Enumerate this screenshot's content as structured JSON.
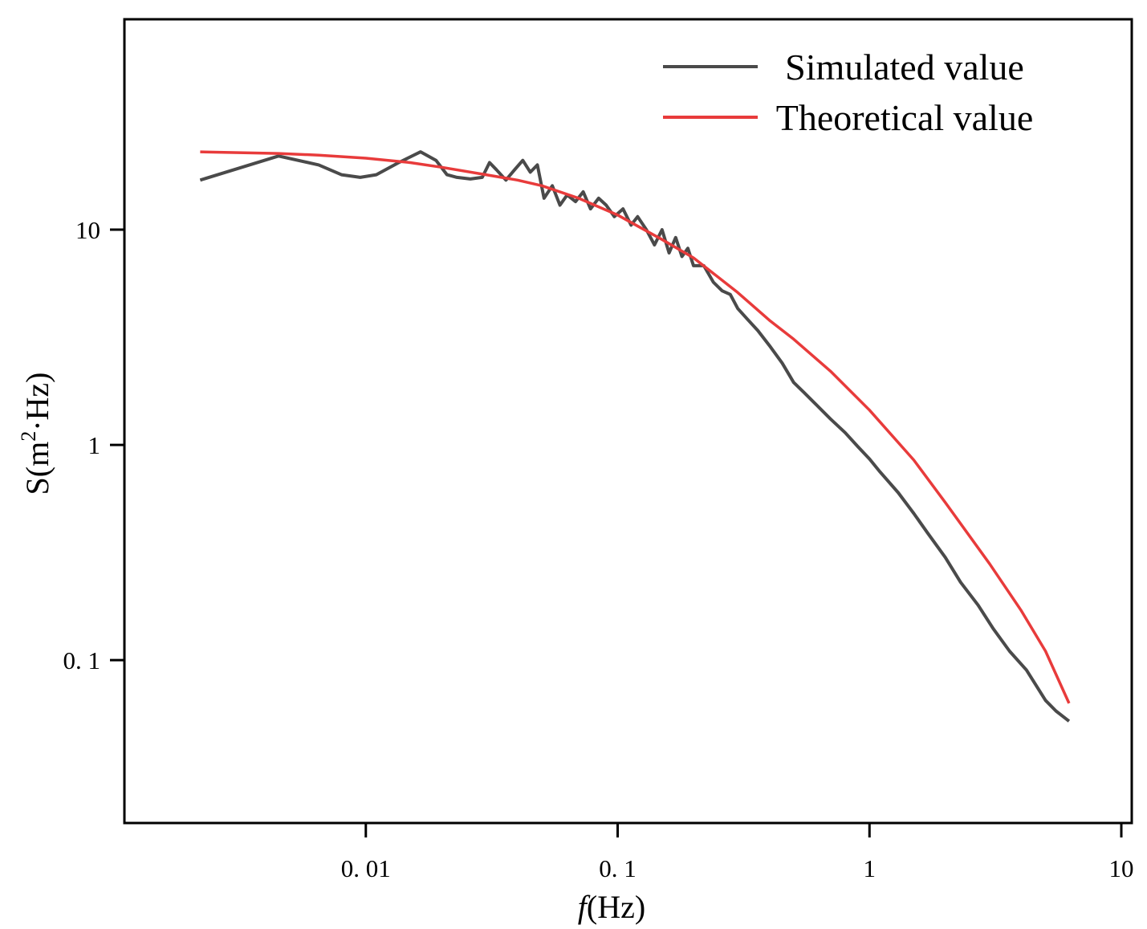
{
  "chart_data": {
    "type": "line",
    "title": "",
    "xlabel_italic": "f",
    "xlabel_rest": "(Hz)",
    "ylabel_main": "S(m",
    "ylabel_sup": "2",
    "ylabel_end": "·Hz)",
    "xscale": "log",
    "yscale": "log",
    "xlim": [
      0.0011,
      11
    ],
    "ylim": [
      0.0175,
      95
    ],
    "grid": false,
    "legend_position": "top-right",
    "x_ticks": [
      {
        "value": 0.01,
        "label": "0. 01"
      },
      {
        "value": 0.1,
        "label": "0. 1"
      },
      {
        "value": 1,
        "label": "1"
      },
      {
        "value": 10,
        "label": "10"
      }
    ],
    "y_ticks": [
      {
        "value": 0.1,
        "label": "0. 1"
      },
      {
        "value": 1,
        "label": "1"
      },
      {
        "value": 10,
        "label": "10"
      }
    ],
    "series": [
      {
        "name": "Simulated value",
        "color": "#4a4a4a",
        "x": [
          0.0022,
          0.0045,
          0.0065,
          0.008,
          0.0095,
          0.011,
          0.0135,
          0.0165,
          0.019,
          0.021,
          0.023,
          0.026,
          0.029,
          0.031,
          0.033,
          0.036,
          0.039,
          0.042,
          0.045,
          0.048,
          0.051,
          0.055,
          0.059,
          0.063,
          0.068,
          0.073,
          0.078,
          0.084,
          0.09,
          0.097,
          0.105,
          0.113,
          0.12,
          0.13,
          0.14,
          0.15,
          0.16,
          0.17,
          0.18,
          0.19,
          0.2,
          0.22,
          0.24,
          0.26,
          0.28,
          0.3,
          0.33,
          0.36,
          0.4,
          0.45,
          0.5,
          0.55,
          0.6,
          0.7,
          0.8,
          0.9,
          1.0,
          1.1,
          1.3,
          1.5,
          1.7,
          2.0,
          2.3,
          2.7,
          3.1,
          3.6,
          4.2,
          5.0,
          5.5,
          6.2
        ],
        "y": [
          17,
          22,
          20,
          18,
          17.5,
          18,
          20.5,
          23,
          21,
          18,
          17.5,
          17.2,
          17.5,
          20.5,
          19,
          17,
          19,
          21,
          18.5,
          20,
          14,
          16,
          13,
          14.5,
          13.5,
          15,
          12.5,
          14,
          13,
          11.5,
          12.5,
          10.5,
          11.5,
          10,
          8.5,
          10,
          7.8,
          9.2,
          7.5,
          8.2,
          6.8,
          6.8,
          5.7,
          5.2,
          5.0,
          4.3,
          3.8,
          3.4,
          2.9,
          2.4,
          1.95,
          1.75,
          1.58,
          1.32,
          1.14,
          0.98,
          0.86,
          0.75,
          0.6,
          0.48,
          0.39,
          0.3,
          0.23,
          0.18,
          0.14,
          0.11,
          0.09,
          0.065,
          0.058,
          0.052
        ]
      },
      {
        "name": "Theoretical value",
        "color": "#e83b3b",
        "x": [
          0.0022,
          0.0045,
          0.0065,
          0.01,
          0.015,
          0.02,
          0.03,
          0.04,
          0.05,
          0.07,
          0.1,
          0.15,
          0.2,
          0.3,
          0.4,
          0.5,
          0.7,
          1.0,
          1.5,
          2.0,
          3.0,
          4.0,
          5.0,
          6.2
        ],
        "y": [
          23,
          22.6,
          22.2,
          21.5,
          20.5,
          19.5,
          18,
          17,
          16,
          14,
          11.7,
          9.0,
          7.4,
          5.1,
          3.8,
          3.1,
          2.2,
          1.45,
          0.85,
          0.54,
          0.28,
          0.17,
          0.11,
          0.063
        ]
      }
    ]
  }
}
